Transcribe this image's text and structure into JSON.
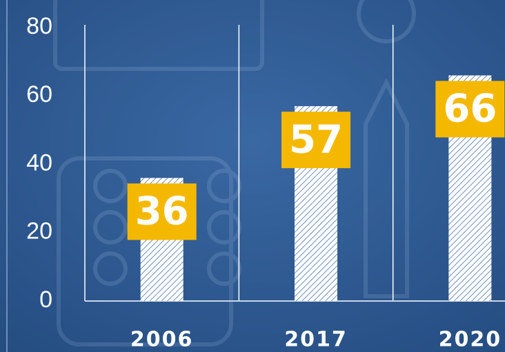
{
  "chart_data": {
    "type": "bar",
    "categories": [
      "2006",
      "2017",
      "2020"
    ],
    "values": [
      36,
      57,
      66
    ],
    "color": "#ffffff",
    "label_color": "#f5b800",
    "ylim": [
      0,
      80
    ],
    "yticks": [
      0,
      20,
      40,
      60,
      80
    ]
  }
}
